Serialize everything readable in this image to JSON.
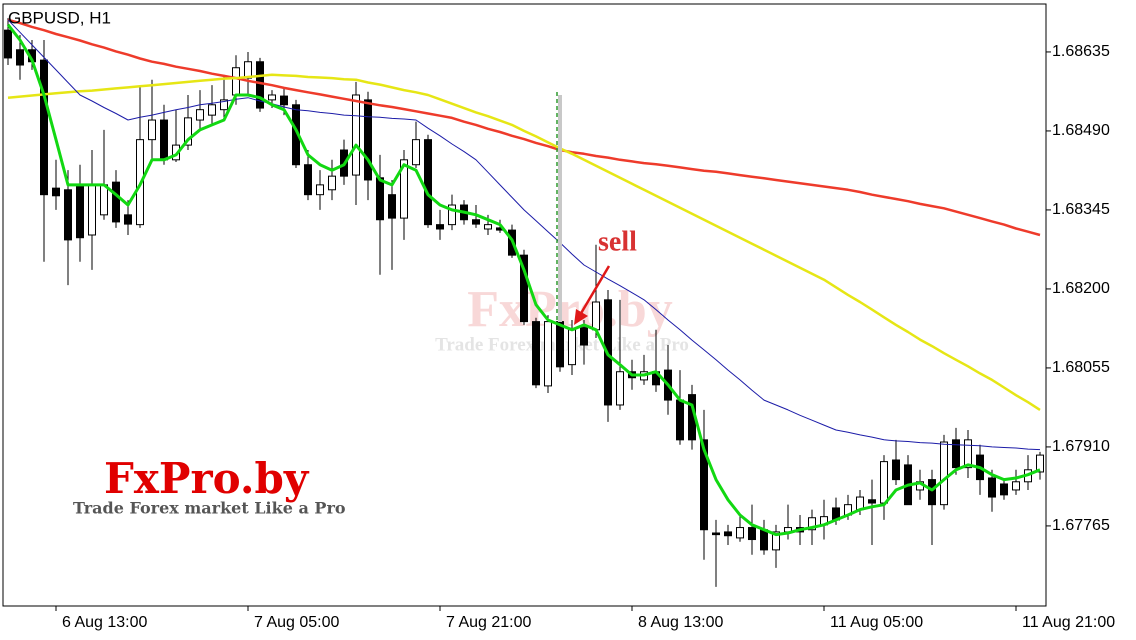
{
  "chart_data": {
    "type": "candlestick",
    "title": "GBPUSD, H1",
    "categories": [
      null,
      null,
      null,
      null,
      "6 Aug 13:00",
      null,
      null,
      null,
      null,
      null,
      null,
      null,
      null,
      null,
      null,
      null,
      null,
      null,
      null,
      null,
      "7 Aug 05:00",
      null,
      null,
      null,
      null,
      null,
      null,
      null,
      null,
      null,
      null,
      null,
      null,
      null,
      null,
      null,
      "7 Aug 21:00",
      null,
      null,
      null,
      null,
      null,
      null,
      null,
      null,
      null,
      null,
      null,
      null,
      null,
      null,
      null,
      "8 Aug 13:00",
      null,
      null,
      null,
      null,
      null,
      null,
      null,
      null,
      null,
      null,
      null,
      null,
      null,
      null,
      null,
      "11 Aug 05:00",
      null,
      null,
      null,
      null,
      null,
      null,
      null,
      null,
      null,
      null,
      null,
      null,
      null,
      null,
      null,
      "11 Aug 21:00",
      null,
      null
    ],
    "open": [
      1.68675,
      1.68639,
      1.68639,
      1.6862,
      1.68385,
      1.68382,
      1.68391,
      1.68299,
      1.68336,
      1.68396,
      1.68336,
      1.68318,
      1.68474,
      1.6851,
      1.68437,
      1.68464,
      1.6851,
      1.68519,
      1.68529,
      1.68556,
      1.68587,
      1.68617,
      1.68547,
      1.68554,
      1.68538,
      1.68428,
      1.68373,
      1.68382,
      1.68455,
      1.68409,
      1.68547,
      1.68404,
      1.68373,
      1.6833,
      1.68428,
      1.68474,
      1.68318,
      1.68318,
      1.68354,
      1.68327,
      1.6831,
      1.68312,
      1.68308,
      1.68262,
      1.6814,
      1.68022,
      1.6814,
      1.68061,
      1.68129,
      1.68125,
      1.6818,
      1.67987,
      1.68048,
      1.68033,
      1.68048,
      1.68051,
      1.67996,
      1.68006,
      1.67923,
      1.67752,
      1.67754,
      1.67743,
      1.67762,
      1.67758,
      1.67721,
      1.67754,
      1.67762,
      1.67758,
      1.67767,
      1.67798,
      1.67785,
      1.67795,
      1.67813,
      1.67807,
      1.67886,
      1.67877,
      1.67831,
      1.6785,
      1.67804,
      1.67923,
      1.67872,
      1.67895,
      1.67853,
      1.67842,
      1.67831,
      1.67846,
      1.67864
    ],
    "high": [
      1.68697,
      1.68666,
      1.68657,
      1.68657,
      1.68437,
      1.68418,
      1.68428,
      1.68455,
      1.68492,
      1.68418,
      1.68363,
      1.68574,
      1.68584,
      1.68538,
      1.68529,
      1.68556,
      1.68565,
      1.68574,
      1.68593,
      1.68629,
      1.68635,
      1.68624,
      1.68565,
      1.68569,
      1.68547,
      1.68455,
      1.68418,
      1.68437,
      1.68474,
      1.6858,
      1.68562,
      1.68446,
      1.684,
      1.68455,
      1.68507,
      1.68483,
      1.68345,
      1.68373,
      1.68363,
      1.68354,
      1.68336,
      1.68327,
      1.68318,
      1.68272,
      1.68147,
      1.68152,
      1.68152,
      1.68143,
      1.68143,
      1.68281,
      1.68198,
      1.6818,
      1.6807,
      1.68079,
      1.68125,
      1.68097,
      1.68051,
      1.68024,
      1.67978,
      1.67776,
      1.67767,
      1.67785,
      1.67804,
      1.67776,
      1.67767,
      1.67804,
      1.67785,
      1.67795,
      1.67813,
      1.67817,
      1.67822,
      1.67831,
      1.6785,
      1.67895,
      1.67923,
      1.67895,
      1.67868,
      1.67868,
      1.67932,
      1.67945,
      1.67941,
      1.67914,
      1.67868,
      1.67853,
      1.67868,
      1.67895,
      1.67901
    ],
    "low": [
      1.68611,
      1.68584,
      1.68602,
      1.6825,
      1.68345,
      1.68207,
      1.6825,
      1.68235,
      1.68327,
      1.68312,
      1.68299,
      1.68312,
      1.68437,
      1.68428,
      1.68433,
      1.68455,
      1.68492,
      1.68501,
      1.6851,
      1.68538,
      1.68556,
      1.68525,
      1.68532,
      1.68519,
      1.68422,
      1.68363,
      1.68345,
      1.68363,
      1.68391,
      1.68354,
      1.68363,
      1.68226,
      1.68235,
      1.6829,
      1.68422,
      1.68312,
      1.6829,
      1.68308,
      1.68318,
      1.68312,
      1.68299,
      1.68303,
      1.68257,
      1.68134,
      1.68018,
      1.68009,
      1.68048,
      1.68042,
      1.68061,
      1.6811,
      1.67956,
      1.67978,
      1.68015,
      1.68024,
      1.68011,
      1.67969,
      1.67914,
      1.67905,
      1.67703,
      1.67653,
      1.6773,
      1.67736,
      1.67712,
      1.67712,
      1.67688,
      1.6774,
      1.6773,
      1.6773,
      1.6774,
      1.67767,
      1.67776,
      1.67785,
      1.6773,
      1.67776,
      1.6784,
      1.67804,
      1.67813,
      1.6773,
      1.67795,
      1.67859,
      1.67853,
      1.67822,
      1.67791,
      1.67813,
      1.67822,
      1.67831,
      1.6785
    ],
    "close": [
      1.68624,
      1.68611,
      1.68617,
      1.68373,
      1.68371,
      1.6829,
      1.68294,
      1.68391,
      1.68391,
      1.68323,
      1.68319,
      1.68474,
      1.6851,
      1.68437,
      1.68464,
      1.68514,
      1.68529,
      1.68538,
      1.68547,
      1.68606,
      1.68617,
      1.68532,
      1.68556,
      1.68538,
      1.68428,
      1.68373,
      1.68391,
      1.68407,
      1.68407,
      1.68556,
      1.684,
      1.68327,
      1.6833,
      1.68437,
      1.68474,
      1.68318,
      1.6831,
      1.68354,
      1.68327,
      1.68319,
      1.68318,
      1.68308,
      1.68262,
      1.6814,
      1.68024,
      1.6814,
      1.68057,
      1.68125,
      1.68097,
      1.68176,
      1.67987,
      1.68048,
      1.68037,
      1.68048,
      1.68024,
      1.67996,
      1.67923,
      1.67923,
      1.67758,
      1.67749,
      1.67747,
      1.67762,
      1.6774,
      1.67721,
      1.67754,
      1.67762,
      1.67754,
      1.6778,
      1.67782,
      1.67776,
      1.67804,
      1.67818,
      1.67807,
      1.67883,
      1.6785,
      1.67804,
      1.67846,
      1.67804,
      1.67919,
      1.67872,
      1.67923,
      1.6785,
      1.67818,
      1.67822,
      1.67846,
      1.67868,
      1.67895
    ],
    "up_color": "#ffffff",
    "down_color": "#000000",
    "lines": [
      {
        "color": "#ee3b2b",
        "values": [
          1.68694,
          1.68688,
          1.68681,
          1.68675,
          1.68668,
          1.68662,
          1.68656,
          1.68649,
          1.68643,
          1.68636,
          1.6863,
          1.68623,
          1.68617,
          1.68613,
          1.68608,
          1.68604,
          1.686,
          1.68595,
          1.68591,
          1.68587,
          1.68582,
          1.68578,
          1.68574,
          1.68569,
          1.68565,
          1.68561,
          1.68557,
          1.68553,
          1.68549,
          1.68545,
          1.68541,
          1.68537,
          1.68534,
          1.6853,
          1.68526,
          1.68522,
          1.68518,
          1.68514,
          1.68507,
          1.68501,
          1.68494,
          1.68488,
          1.68481,
          1.68475,
          1.68468,
          1.68462,
          1.68455,
          1.68451,
          1.68448,
          1.68444,
          1.68441,
          1.68437,
          1.68434,
          1.68431,
          1.68429,
          1.68426,
          1.68423,
          1.6842,
          1.68417,
          1.68415,
          1.68412,
          1.68409,
          1.68406,
          1.68403,
          1.684,
          1.68397,
          1.68394,
          1.68391,
          1.68388,
          1.68385,
          1.68382,
          1.68378,
          1.68373,
          1.68369,
          1.68365,
          1.68361,
          1.68356,
          1.68352,
          1.68348,
          1.68342,
          1.68336,
          1.6833,
          1.68324,
          1.68318,
          1.68311,
          1.68305,
          1.68299
        ]
      },
      {
        "color": "#e6e615",
        "values": [
          1.68551,
          1.68553,
          1.68555,
          1.68557,
          1.68559,
          1.68561,
          1.68563,
          1.68564,
          1.68566,
          1.68568,
          1.6857,
          1.68572,
          1.68574,
          1.68576,
          1.68578,
          1.6858,
          1.68582,
          1.68584,
          1.68586,
          1.68587,
          1.68589,
          1.68591,
          1.68593,
          1.68592,
          1.68591,
          1.68589,
          1.68588,
          1.68587,
          1.68585,
          1.68584,
          1.68579,
          1.68575,
          1.6857,
          1.68565,
          1.68561,
          1.68556,
          1.68548,
          1.6854,
          1.68532,
          1.68524,
          1.68517,
          1.68509,
          1.68501,
          1.6849,
          1.6848,
          1.68469,
          1.68458,
          1.68448,
          1.68437,
          1.68426,
          1.68415,
          1.68404,
          1.68393,
          1.68382,
          1.68371,
          1.6836,
          1.68349,
          1.68338,
          1.68327,
          1.68316,
          1.68305,
          1.68294,
          1.68283,
          1.68272,
          1.68261,
          1.6825,
          1.68239,
          1.68228,
          1.68217,
          1.68203,
          1.68189,
          1.68176,
          1.68162,
          1.68148,
          1.68134,
          1.68121,
          1.68107,
          1.68095,
          1.68082,
          1.6807,
          1.68058,
          1.68045,
          1.68033,
          1.68019,
          1.68005,
          1.67992,
          1.67978
        ]
      },
      {
        "color": "#1c1ca8",
        "values": [
          1.68694,
          1.68671,
          1.68648,
          1.68625,
          1.68602,
          1.68579,
          1.68556,
          1.68545,
          1.68533,
          1.68522,
          1.6851,
          1.68515,
          1.68519,
          1.68524,
          1.68529,
          1.68533,
          1.68538,
          1.68541,
          1.68544,
          1.68548,
          1.68551,
          1.68545,
          1.6854,
          1.68534,
          1.68529,
          1.68527,
          1.68524,
          1.68522,
          1.68519,
          1.68518,
          1.68516,
          1.68515,
          1.68513,
          1.68512,
          1.6851,
          1.68495,
          1.68481,
          1.68466,
          1.68452,
          1.68437,
          1.68414,
          1.68391,
          1.68368,
          1.68345,
          1.68325,
          1.68305,
          1.68285,
          1.68264,
          1.68244,
          1.68231,
          1.68218,
          1.68206,
          1.68193,
          1.6818,
          1.68162,
          1.68143,
          1.68125,
          1.68106,
          1.68088,
          1.6807,
          1.68051,
          1.68033,
          1.68014,
          1.67996,
          1.67987,
          1.67978,
          1.67968,
          1.67959,
          1.6795,
          1.67941,
          1.67937,
          1.67932,
          1.67928,
          1.67923,
          1.67921,
          1.6792,
          1.67918,
          1.67917,
          1.67915,
          1.67914,
          1.67913,
          1.67912,
          1.6791,
          1.67909,
          1.67908,
          1.67906,
          1.67905
        ]
      },
      {
        "color": "#12d812",
        "values": [
          1.68685,
          1.68657,
          1.6862,
          1.68556,
          1.68474,
          1.68391,
          1.68391,
          1.68391,
          1.68391,
          1.68373,
          1.68354,
          1.68391,
          1.68437,
          1.68437,
          1.68446,
          1.68474,
          1.68492,
          1.68501,
          1.6851,
          1.68556,
          1.68556,
          1.68551,
          1.68538,
          1.68529,
          1.68492,
          1.68446,
          1.68428,
          1.68418,
          1.68428,
          1.68464,
          1.68437,
          1.684,
          1.68391,
          1.68428,
          1.68418,
          1.68373,
          1.68354,
          1.68345,
          1.68341,
          1.68336,
          1.68327,
          1.68318,
          1.6829,
          1.68235,
          1.68171,
          1.68143,
          1.68134,
          1.68125,
          1.68134,
          1.68125,
          1.68079,
          1.68061,
          1.68042,
          1.68042,
          1.68048,
          1.68024,
          1.67996,
          1.67987,
          1.67905,
          1.6785,
          1.67813,
          1.67785,
          1.67767,
          1.67758,
          1.67749,
          1.67752,
          1.67758,
          1.67762,
          1.67767,
          1.67776,
          1.67785,
          1.67795,
          1.678,
          1.67804,
          1.67831,
          1.6784,
          1.67844,
          1.67831,
          1.6785,
          1.67868,
          1.67877,
          1.67872,
          1.67859,
          1.6785,
          1.67853,
          1.67859,
          1.67868
        ]
      }
    ],
    "ylim": [
      1.67618,
      1.68723
    ],
    "yticks": [
      1.68635,
      {
        "value": 1.6849,
        "label": "1.68490"
      },
      1.68345,
      {
        "value": 1.682,
        "label": "1.68200"
      },
      1.68055,
      {
        "value": 1.6791,
        "label": "1.67910"
      },
      1.67765
    ],
    "annotation": "sell",
    "watermark": {
      "logo": "FxPro.by",
      "tagline": "Trade Forex market Like a Pro"
    }
  }
}
